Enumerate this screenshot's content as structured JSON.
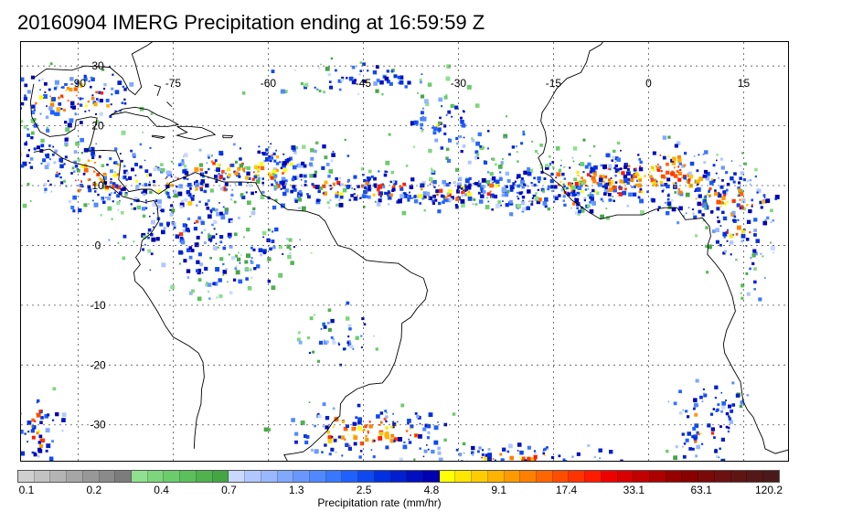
{
  "title": "20160904 IMERG Precipitation ending at 16:59:59 Z",
  "map": {
    "lon_labels": [
      "-90",
      "-75",
      "-60",
      "-45",
      "-30",
      "-15",
      "0",
      "15"
    ],
    "lat_labels": [
      "30",
      "20",
      "10",
      "0",
      "-10",
      "-20",
      "-30"
    ],
    "lon_values": [
      -90,
      -75,
      -60,
      -45,
      -30,
      -15,
      0,
      15
    ],
    "lat_values": [
      30,
      20,
      10,
      0,
      -10,
      -20,
      -30
    ],
    "lon_range": [
      -99,
      22
    ],
    "lat_range": [
      -36,
      34
    ],
    "gridlines": "dotted"
  },
  "colorbar": {
    "label": "Precipitation rate (mm/hr)",
    "tick_labels": [
      "0.1",
      "0.2",
      "0.4",
      "0.7",
      "1.3",
      "2.5",
      "4.8",
      "9.1",
      "17.4",
      "33.1",
      "63.1",
      "120.2"
    ],
    "colors": [
      "#cfcfcf",
      "#c2c2c2",
      "#b4b4b4",
      "#a6a6a6",
      "#989898",
      "#8a8a8a",
      "#7c7c7c",
      "#8fe08f",
      "#7dd67d",
      "#6ccc6c",
      "#5bbf5b",
      "#4fb24f",
      "#45a545",
      "#c8d8ff",
      "#b0c8ff",
      "#98b8ff",
      "#80a8ff",
      "#6898ff",
      "#5088ff",
      "#3878ff",
      "#2060ff",
      "#1048f0",
      "#0030e0",
      "#0020d0",
      "#0010c0",
      "#0000b0",
      "#ffff00",
      "#ffe600",
      "#ffcc00",
      "#ffb300",
      "#ff9900",
      "#ff8000",
      "#ff6600",
      "#ff4d00",
      "#ff3300",
      "#ff1a00",
      "#ee0000",
      "#d80000",
      "#c20000",
      "#ac0000",
      "#960000",
      "#880000",
      "#7a0a0a",
      "#6d1010",
      "#601515",
      "#551818",
      "#4a1a1a"
    ]
  }
}
